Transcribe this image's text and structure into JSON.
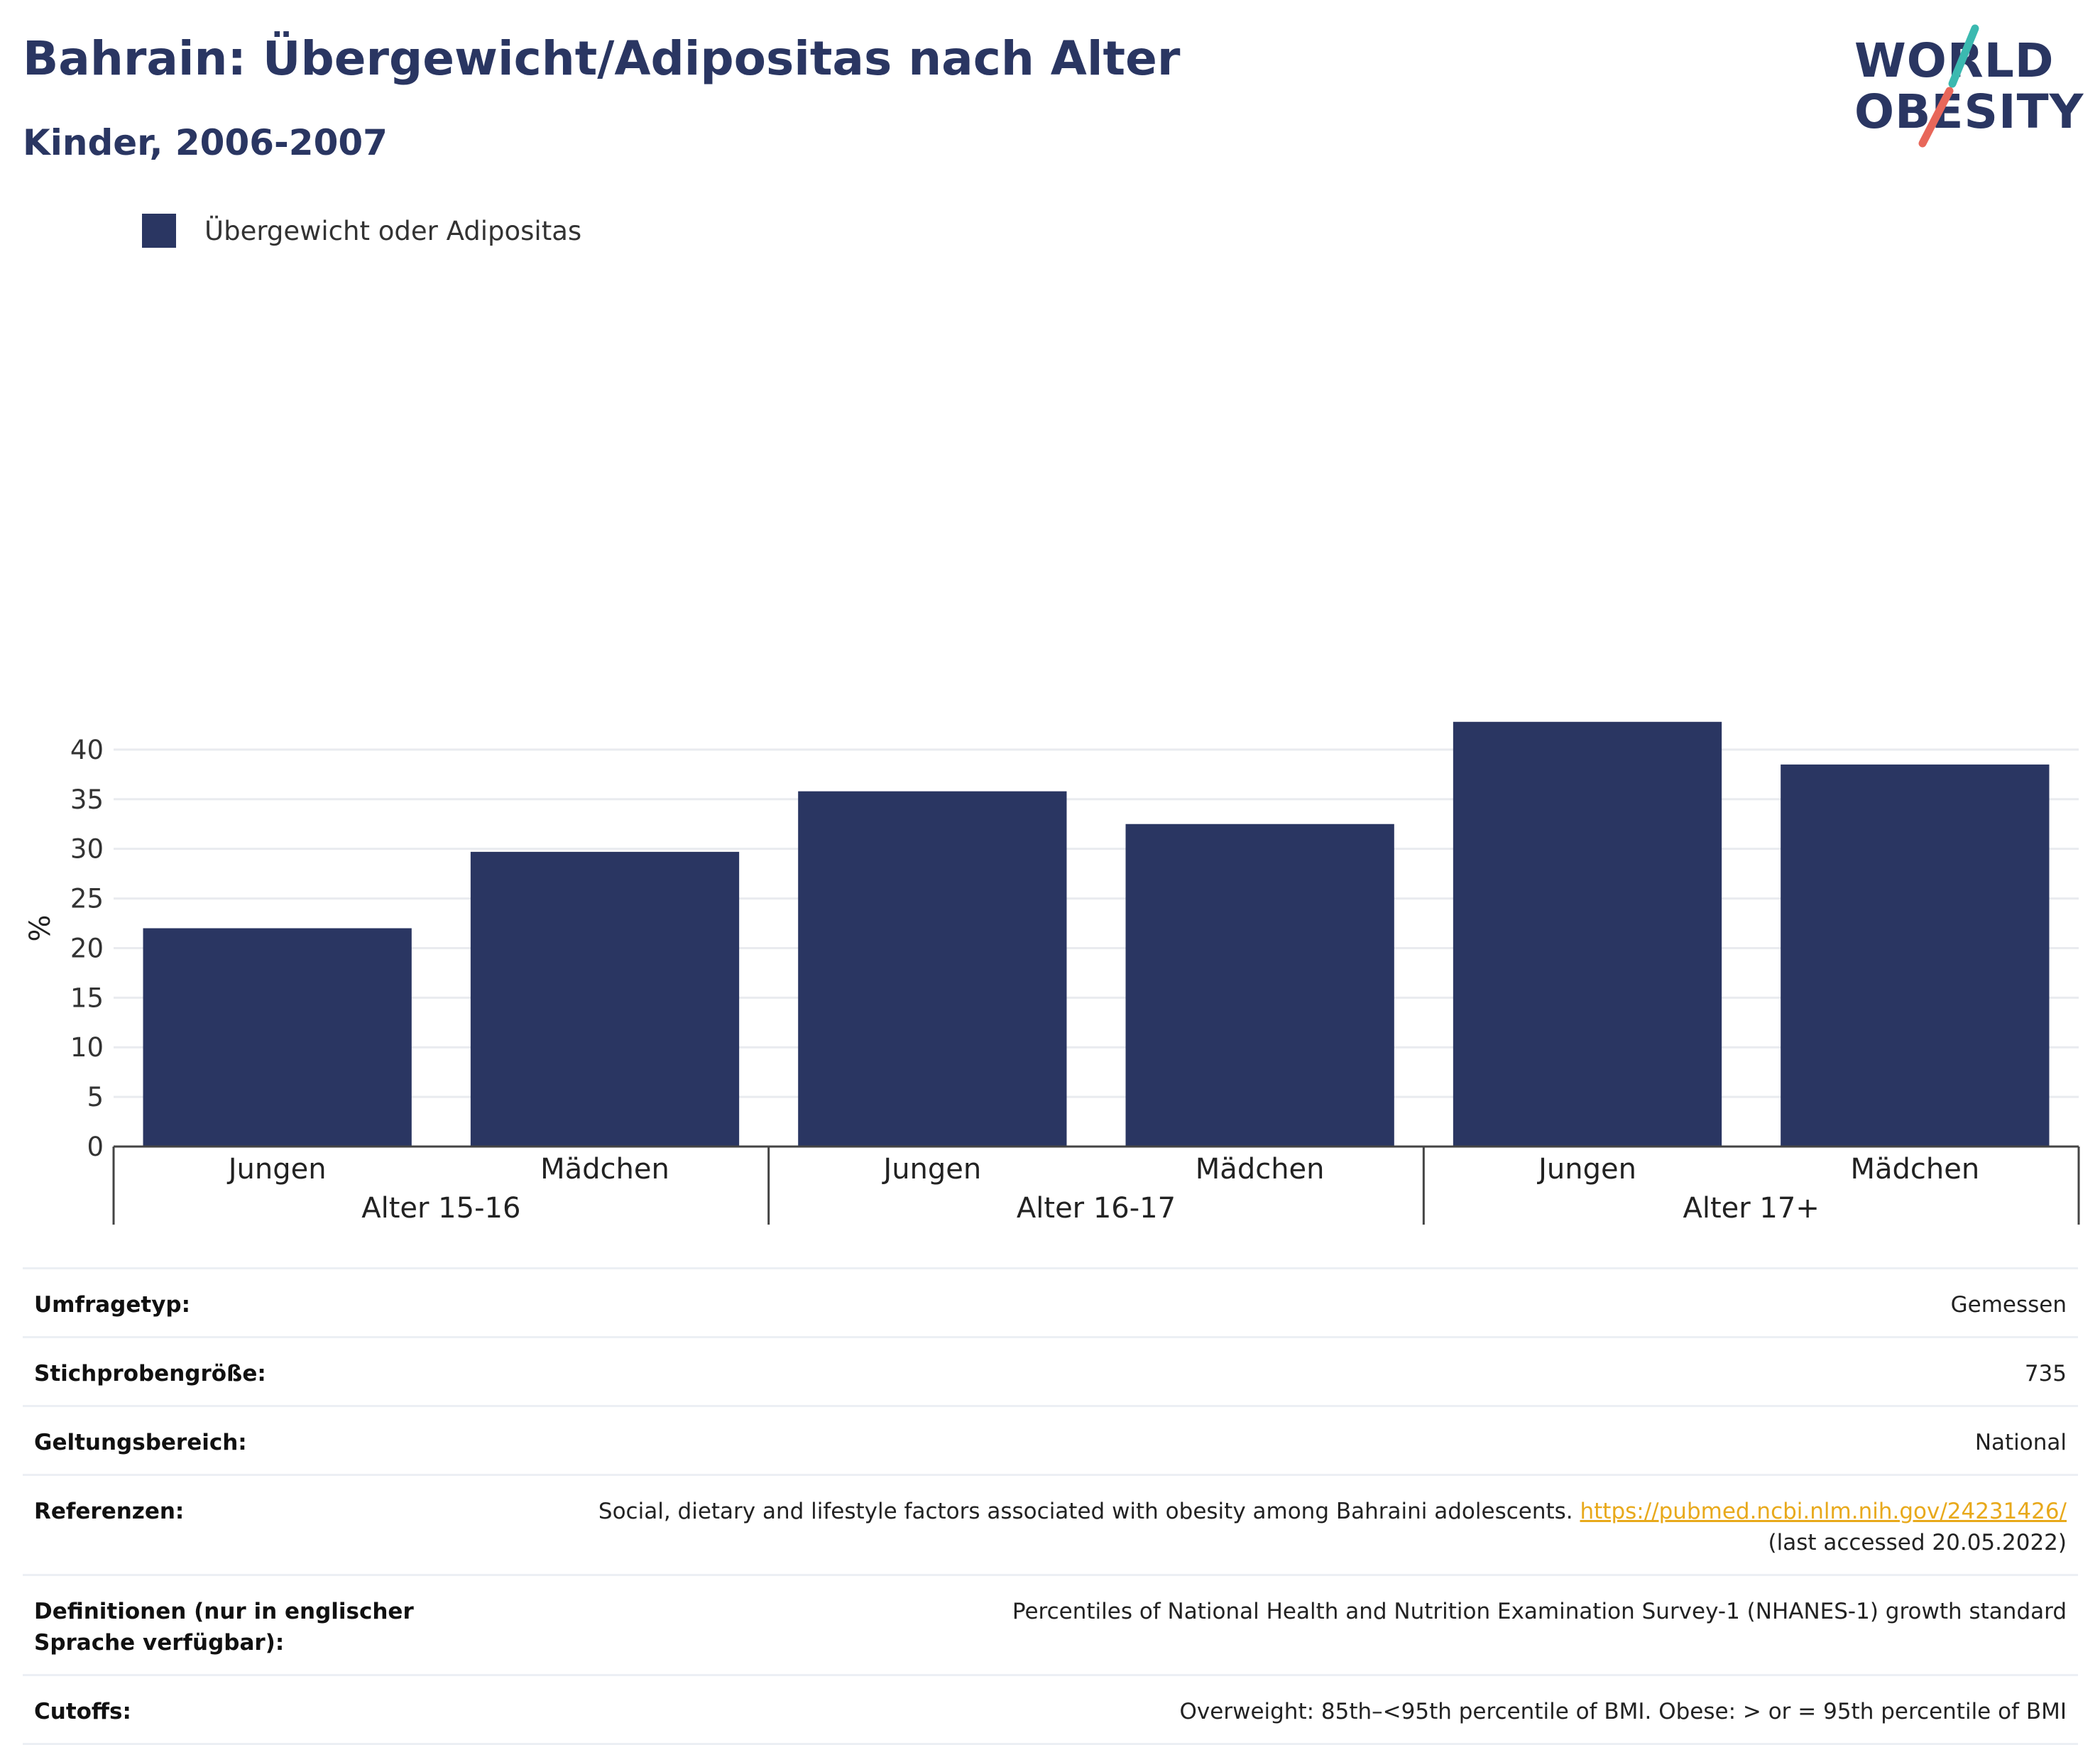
{
  "header": {
    "title": "Bahrain: Übergewicht/Adipositas nach Alter",
    "subtitle": "Kinder, 2006-2007"
  },
  "logo": {
    "line1": "WORLD",
    "line2": "OBESITY",
    "colors": {
      "text": "#2a3662",
      "slash_top": "#3bb9b0",
      "slash_bottom": "#e8675a"
    }
  },
  "legend": {
    "label": "Übergewicht oder Adipositas",
    "color": "#2a3662"
  },
  "chart_data": {
    "type": "bar",
    "ylabel": "%",
    "ylim": [
      0,
      44
    ],
    "yticks": [
      0,
      5,
      10,
      15,
      20,
      25,
      30,
      35,
      40
    ],
    "grid": true,
    "legend_position": "top-left",
    "bar_color": "#2a3662",
    "groups": [
      {
        "label": "Alter 15-16",
        "categories": [
          "Jungen",
          "Mädchen"
        ],
        "values": [
          22.0,
          29.7
        ]
      },
      {
        "label": "Alter 16-17",
        "categories": [
          "Jungen",
          "Mädchen"
        ],
        "values": [
          35.8,
          32.5
        ]
      },
      {
        "label": "Alter 17+",
        "categories": [
          "Jungen",
          "Mädchen"
        ],
        "values": [
          42.8,
          38.5
        ]
      }
    ],
    "series": [
      {
        "name": "Übergewicht oder Adipositas",
        "values": [
          22.0,
          29.7,
          35.8,
          32.5,
          42.8,
          38.5
        ]
      }
    ]
  },
  "meta": {
    "survey_type": {
      "label": "Umfragetyp:",
      "value": "Gemessen"
    },
    "sample_size": {
      "label": "Stichprobengröße:",
      "value": "735"
    },
    "scope": {
      "label": "Geltungsbereich:",
      "value": "National"
    },
    "references": {
      "label": "Referenzen:",
      "text": "Social, dietary and lifestyle factors associated with obesity among Bahraini adolescents.",
      "link": "https://pubmed.ncbi.nlm.nih.gov/24231426/",
      "accessed": "(last accessed 20.05.2022)"
    },
    "definitions": {
      "label": "Definitionen (nur in englischer Sprache verfügbar):",
      "value": "Percentiles of National Health and Nutrition Examination Survey-1 (NHANES-1) growth standard"
    },
    "cutoffs": {
      "label": "Cutoffs:",
      "value": "Overweight: 85th–<95th percentile of BMI. Obese: > or = 95th percentile of BMI"
    }
  }
}
